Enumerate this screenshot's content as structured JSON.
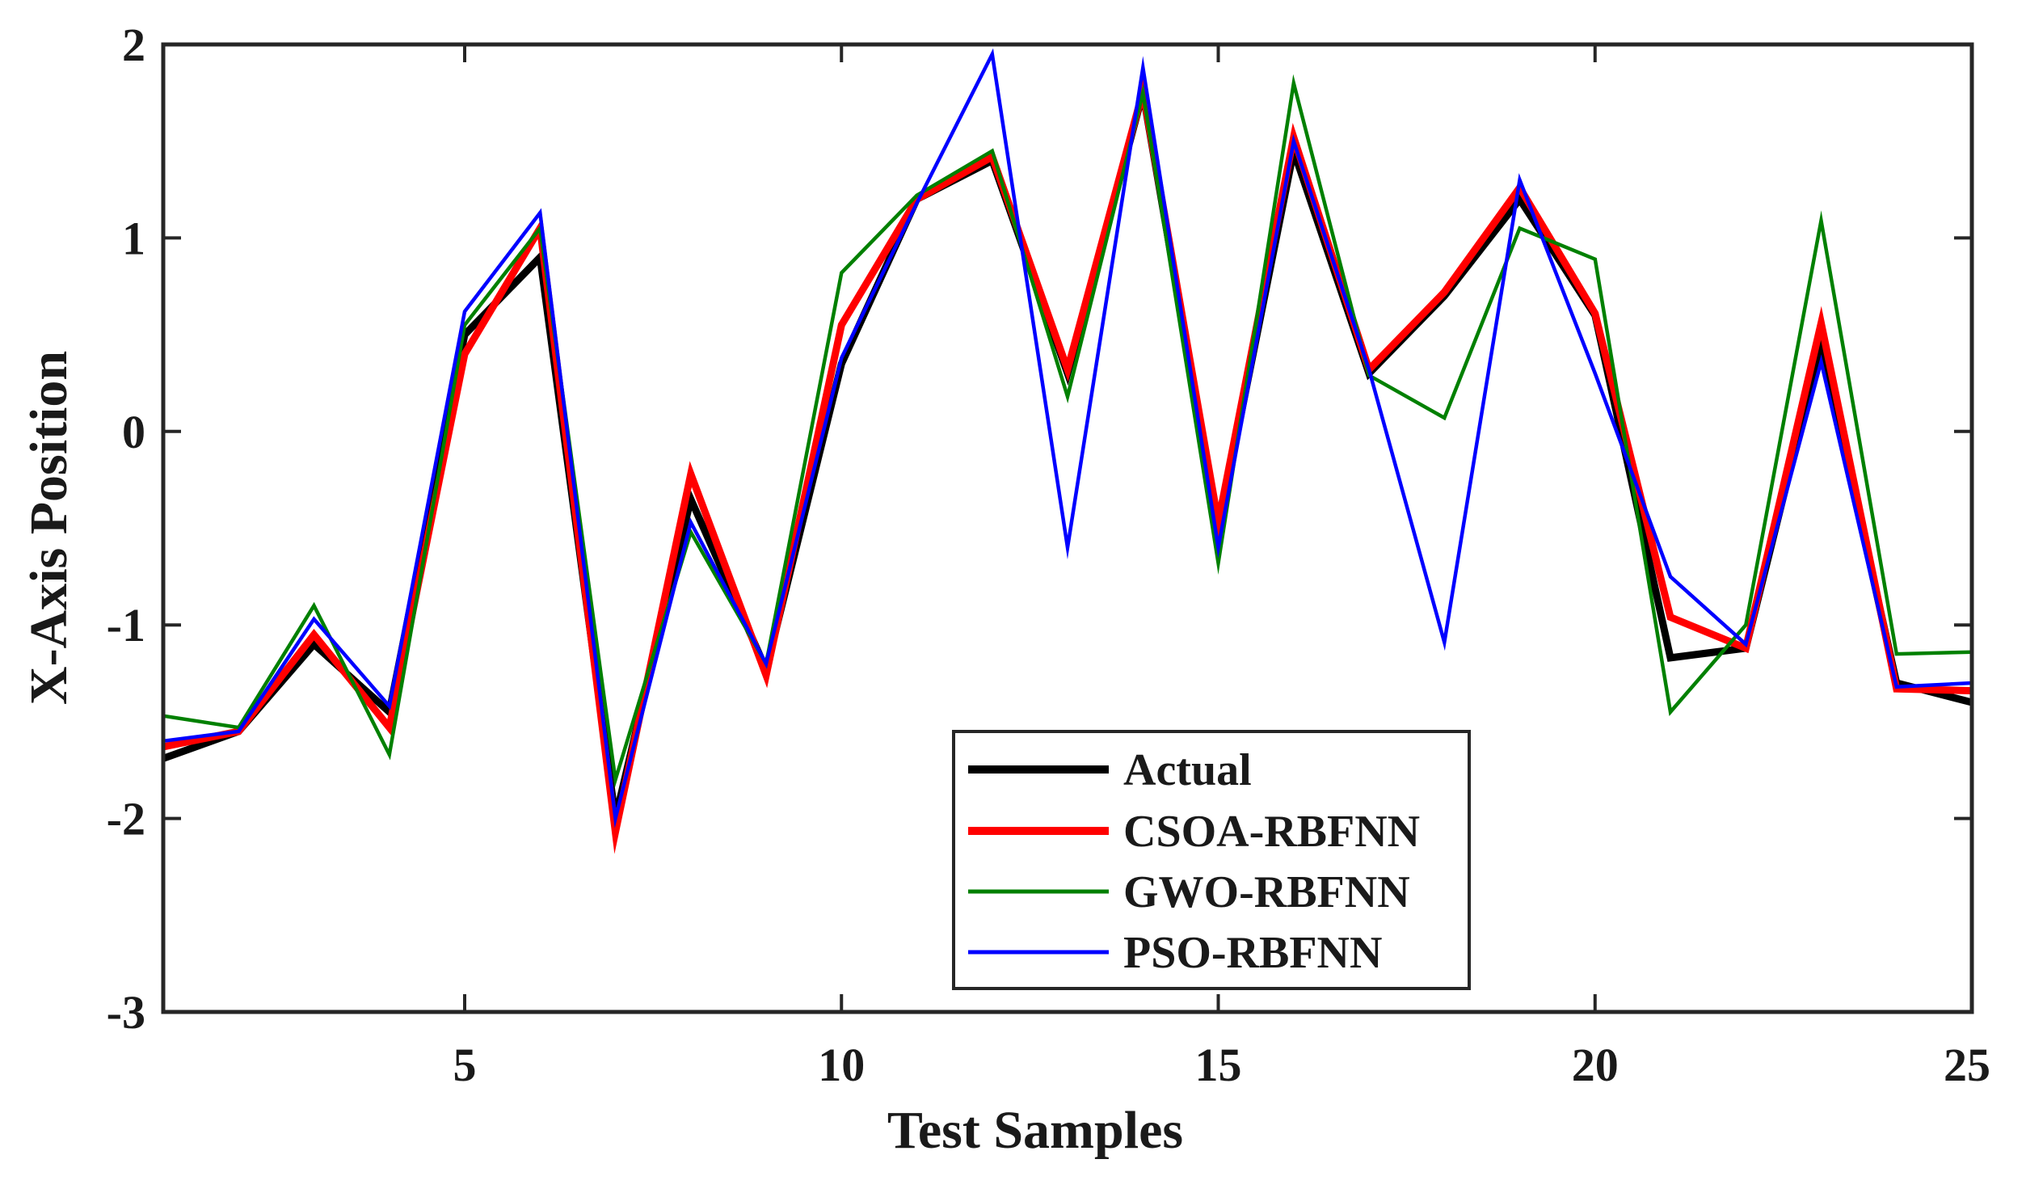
{
  "chart_data": {
    "type": "line",
    "title": "",
    "xlabel": "Test Samples",
    "ylabel": "X-Axis Position",
    "xlim": [
      1,
      25
    ],
    "ylim": [
      -3,
      2
    ],
    "xticks": [
      5,
      10,
      15,
      20,
      25
    ],
    "xtick_labels": [
      "5",
      "10",
      "15",
      "20",
      "25"
    ],
    "yticks": [
      -3,
      -2,
      -1,
      0,
      1,
      2
    ],
    "ytick_labels": [
      "-3",
      "-2",
      "-1",
      "0",
      "1",
      "2"
    ],
    "grid": false,
    "legend_position": "bottom-center",
    "x": [
      1,
      2,
      3,
      4,
      5,
      6,
      7,
      8,
      9,
      10,
      11,
      12,
      13,
      14,
      15,
      16,
      17,
      18,
      19,
      20,
      21,
      22,
      23,
      24,
      25
    ],
    "series": [
      {
        "name": "Actual",
        "color": "#000000",
        "weight": "thick",
        "values": [
          -1.69,
          -1.55,
          -1.1,
          -1.45,
          0.5,
          0.9,
          -2.0,
          -0.35,
          -1.23,
          0.35,
          1.2,
          1.4,
          0.3,
          1.75,
          -0.5,
          1.45,
          0.3,
          0.7,
          1.2,
          0.6,
          -1.17,
          -1.12,
          0.45,
          -1.3,
          -1.4
        ]
      },
      {
        "name": "CSOA-RBFNN",
        "color": "#ff0000",
        "weight": "thick",
        "values": [
          -1.63,
          -1.55,
          -1.05,
          -1.53,
          0.4,
          1.05,
          -2.07,
          -0.22,
          -1.26,
          0.55,
          1.2,
          1.42,
          0.32,
          1.76,
          -0.47,
          1.52,
          0.32,
          0.72,
          1.26,
          0.61,
          -0.96,
          -1.12,
          0.56,
          -1.33,
          -1.34
        ]
      },
      {
        "name": "GWO-RBFNN",
        "color": "#008000",
        "weight": "thin",
        "values": [
          -1.47,
          -1.53,
          -0.9,
          -1.67,
          0.55,
          1.05,
          -1.8,
          -0.52,
          -1.2,
          0.82,
          1.22,
          1.45,
          0.18,
          1.75,
          -0.68,
          1.8,
          0.29,
          0.07,
          1.05,
          0.89,
          -1.45,
          -1.0,
          1.09,
          -1.15,
          -1.14
        ]
      },
      {
        "name": "PSO-RBFNN",
        "color": "#0000ff",
        "weight": "thin",
        "values": [
          -1.6,
          -1.55,
          -0.97,
          -1.42,
          0.62,
          1.13,
          -2.0,
          -0.47,
          -1.2,
          0.38,
          1.18,
          1.95,
          -0.6,
          1.88,
          -0.6,
          1.5,
          0.32,
          -1.09,
          1.3,
          0.3,
          -0.75,
          -1.1,
          0.36,
          -1.32,
          -1.3
        ]
      }
    ]
  }
}
